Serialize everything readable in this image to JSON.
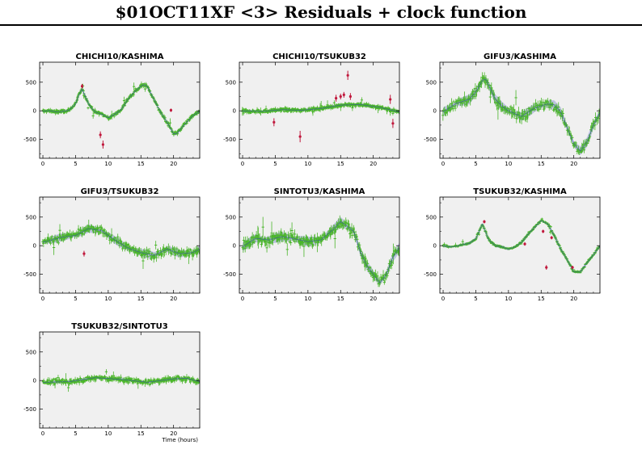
{
  "title": "$01OCT11XF <3> Residuals + clock function",
  "colors": {
    "good": "#4ab52a",
    "flagged": "#c0183c",
    "band": "#b8bce0",
    "clock": "#3333cc",
    "panel_bg": "#f0f0f0"
  },
  "chart_data": [
    {
      "type": "scatter",
      "title": "CHICHI10/KASHIMA",
      "xlabel": "",
      "xlim": [
        -0.5,
        24
      ],
      "ylim": [
        -830,
        850
      ],
      "xticks": [
        "0",
        "5",
        "10",
        "15",
        "20"
      ],
      "yticks": [
        "500",
        "0",
        "-500"
      ],
      "clock": {
        "x": [
          0,
          1,
          2,
          3,
          4,
          5,
          5.5,
          6,
          6.5,
          7,
          7.5,
          8,
          9,
          10,
          11,
          12,
          13,
          14,
          15,
          15.5,
          16,
          17,
          18,
          19,
          20,
          20.5,
          21,
          22,
          23,
          24
        ],
        "y": [
          -10,
          5,
          -20,
          -10,
          10,
          120,
          280,
          380,
          250,
          120,
          40,
          -20,
          -60,
          -120,
          -60,
          20,
          200,
          330,
          430,
          460,
          420,
          200,
          -20,
          -200,
          -400,
          -400,
          -330,
          -200,
          -80,
          -10
        ]
      },
      "band": 20,
      "flagged": [
        {
          "x": 6.0,
          "y": 430,
          "err": 40
        },
        {
          "x": 8.8,
          "y": -420,
          "err": 60
        },
        {
          "x": 9.2,
          "y": -590,
          "err": 70
        },
        {
          "x": 19.6,
          "y": 10,
          "err": 30
        }
      ]
    },
    {
      "type": "scatter",
      "title": "CHICHI10/TSUKUB32",
      "xlabel": "",
      "xlim": [
        -0.5,
        24
      ],
      "ylim": [
        -830,
        850
      ],
      "xticks": [
        "0",
        "5",
        "10",
        "15",
        "20"
      ],
      "yticks": [
        "500",
        "0",
        "-500"
      ],
      "clock": {
        "x": [
          0,
          3,
          6,
          9,
          12,
          15,
          18,
          21,
          24
        ],
        "y": [
          -5,
          -10,
          20,
          10,
          40,
          100,
          110,
          60,
          -20
        ]
      },
      "band": 20,
      "flagged": [
        {
          "x": 4.8,
          "y": -200,
          "err": 70
        },
        {
          "x": 8.8,
          "y": -450,
          "err": 100
        },
        {
          "x": 14.3,
          "y": 220,
          "err": 60
        },
        {
          "x": 15.0,
          "y": 250,
          "err": 50
        },
        {
          "x": 15.5,
          "y": 280,
          "err": 50
        },
        {
          "x": 16.1,
          "y": 620,
          "err": 80
        },
        {
          "x": 16.5,
          "y": 250,
          "err": 60
        },
        {
          "x": 22.6,
          "y": 200,
          "err": 80
        },
        {
          "x": 23.0,
          "y": -220,
          "err": 80
        }
      ]
    },
    {
      "type": "scatter",
      "title": "GIFU3/KASHIMA",
      "xlabel": "",
      "xlim": [
        -0.5,
        24
      ],
      "ylim": [
        -830,
        850
      ],
      "xticks": [
        "0",
        "5",
        "10",
        "15",
        "20"
      ],
      "yticks": [
        "500",
        "0",
        "-500"
      ],
      "clock": {
        "x": [
          0,
          2,
          4,
          5,
          6,
          6.5,
          7,
          8,
          9,
          10,
          12,
          14,
          16,
          17,
          18,
          19,
          20,
          21,
          22,
          23,
          24
        ],
        "y": [
          -20,
          130,
          200,
          330,
          530,
          560,
          440,
          200,
          80,
          0,
          -100,
          50,
          120,
          100,
          -20,
          -300,
          -580,
          -700,
          -550,
          -250,
          -30
        ]
      },
      "band": 60,
      "flagged": []
    },
    {
      "type": "scatter",
      "title": "GIFU3/TSUKUB32",
      "xlabel": "",
      "xlim": [
        -0.5,
        24
      ],
      "ylim": [
        -830,
        850
      ],
      "xticks": [
        "0",
        "5",
        "10",
        "15",
        "20"
      ],
      "yticks": [
        "500",
        "0",
        "-500"
      ],
      "clock": {
        "x": [
          0,
          3,
          5,
          7,
          9,
          11,
          13,
          15,
          17,
          19,
          21,
          23,
          24
        ],
        "y": [
          60,
          150,
          180,
          300,
          260,
          100,
          -40,
          -120,
          -170,
          -60,
          -140,
          -120,
          -60
        ]
      },
      "band": 50,
      "flagged": [
        {
          "x": 6.3,
          "y": -140,
          "err": 50
        }
      ]
    },
    {
      "type": "scatter",
      "title": "SINTOTU3/KASHIMA",
      "xlabel": "",
      "xlim": [
        -0.5,
        24
      ],
      "ylim": [
        -830,
        850
      ],
      "xticks": [
        "0",
        "5",
        "10",
        "15",
        "20"
      ],
      "yticks": [
        "500",
        "0",
        "-500"
      ],
      "clock": {
        "x": [
          0,
          2,
          4,
          6,
          8,
          10,
          12,
          14,
          15,
          16,
          17,
          18,
          19,
          20,
          21,
          22,
          23,
          24
        ],
        "y": [
          -20,
          130,
          100,
          160,
          120,
          70,
          100,
          300,
          420,
          340,
          250,
          -100,
          -350,
          -500,
          -650,
          -500,
          -200,
          -30
        ]
      },
      "band": 60,
      "flagged": []
    },
    {
      "type": "scatter",
      "title": "TSUKUB32/KASHIMA",
      "xlabel": "",
      "xlim": [
        -0.5,
        24
      ],
      "ylim": [
        -830,
        850
      ],
      "xticks": [
        "0",
        "5",
        "10",
        "15",
        "20"
      ],
      "yticks": [
        "500",
        "0",
        "-500"
      ],
      "clock": {
        "x": [
          0,
          1,
          2,
          3,
          4,
          5,
          5.5,
          6,
          6.5,
          7,
          8,
          9,
          10,
          11,
          12,
          13,
          14,
          15,
          16,
          17,
          18,
          19,
          20,
          21,
          22,
          23,
          24
        ],
        "y": [
          0,
          -20,
          -10,
          20,
          40,
          120,
          250,
          380,
          240,
          100,
          0,
          -20,
          -60,
          -20,
          60,
          200,
          320,
          440,
          380,
          180,
          -60,
          -250,
          -460,
          -460,
          -300,
          -160,
          0
        ]
      },
      "band": 20,
      "flagged": [
        {
          "x": 6.3,
          "y": 420,
          "err": 30
        },
        {
          "x": 12.5,
          "y": 30,
          "err": 30
        },
        {
          "x": 15.3,
          "y": 250,
          "err": 30
        },
        {
          "x": 15.8,
          "y": -380,
          "err": 40
        },
        {
          "x": 16.6,
          "y": 140,
          "err": 30
        },
        {
          "x": 19.8,
          "y": -380,
          "err": 30
        }
      ]
    },
    {
      "type": "scatter",
      "title": "TSUKUB32/SINTOTU3",
      "xlabel": "Time (hours)",
      "xlim": [
        -0.5,
        24
      ],
      "ylim": [
        -830,
        850
      ],
      "xticks": [
        "0",
        "5",
        "10",
        "15",
        "20"
      ],
      "yticks": [
        "500",
        "0",
        "-500"
      ],
      "clock": {
        "x": [
          0,
          4,
          8,
          12,
          16,
          20,
          22,
          24
        ],
        "y": [
          -30,
          -20,
          50,
          20,
          -30,
          30,
          40,
          -20
        ]
      },
      "band": 20,
      "flagged": []
    }
  ]
}
